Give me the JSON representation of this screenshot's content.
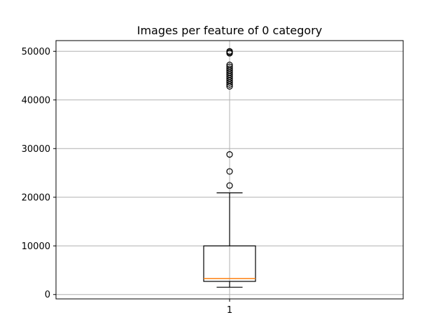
{
  "chart_data": {
    "type": "box",
    "title": "Images per feature of 0 category",
    "xlabel": "",
    "ylabel": "",
    "categories": [
      "1"
    ],
    "ylim": [
      -900,
      52200
    ],
    "yticks": [
      0,
      10000,
      20000,
      30000,
      40000,
      50000
    ],
    "yticklabels": [
      "0",
      "10000",
      "20000",
      "30000",
      "40000",
      "50000"
    ],
    "grid": true,
    "box": {
      "whisker_low": 1500,
      "q1": 2700,
      "median": 3300,
      "q3": 10000,
      "whisker_high": 20900
    },
    "outliers": [
      22400,
      25300,
      28800,
      42800,
      43200,
      43600,
      44000,
      44400,
      44800,
      45200,
      45600,
      46000,
      46400,
      46800,
      47200,
      49600,
      49800,
      50000
    ],
    "colors": {
      "box": "#000000",
      "median": "#ff7f0e",
      "grid": "#b0b0b0"
    }
  }
}
